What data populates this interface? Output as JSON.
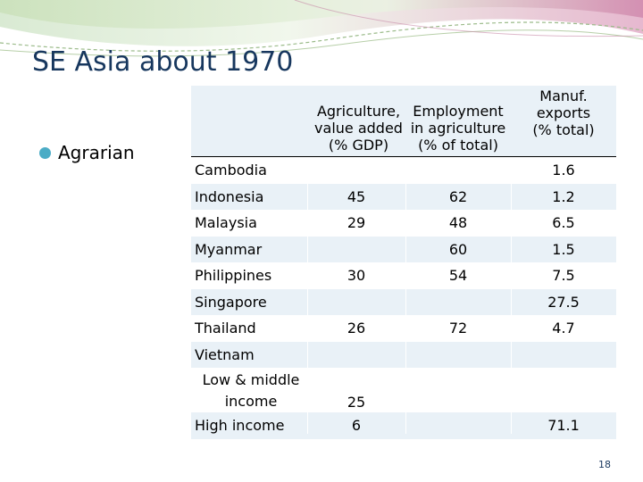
{
  "slide": {
    "title": "SE Asia about 1970",
    "bullet": "Agrarian",
    "page_number": "18",
    "colors": {
      "title": "#17375e",
      "bullet": "#4bacc6",
      "header_band": "#e9f1f7",
      "stripe": "#e9f1f7"
    }
  },
  "table": {
    "headers": {
      "agri": "Agriculture,\nvalue added\n(% GDP)",
      "emp": "Employment\nin agriculture\n(% of total)",
      "manuf": "Manuf.\nexports\n(% total)"
    },
    "rows": [
      {
        "country": "Cambodia",
        "agri": "",
        "emp": "",
        "manuf": "1.6"
      },
      {
        "country": "Indonesia",
        "agri": "45",
        "emp": "62",
        "manuf": "1.2"
      },
      {
        "country": "Malaysia",
        "agri": "29",
        "emp": "48",
        "manuf": "6.5"
      },
      {
        "country": "Myanmar",
        "agri": "",
        "emp": "60",
        "manuf": "1.5"
      },
      {
        "country": "Philippines",
        "agri": "30",
        "emp": "54",
        "manuf": "7.5"
      },
      {
        "country": "Singapore",
        "agri": "",
        "emp": "",
        "manuf": "27.5"
      },
      {
        "country": "Thailand",
        "agri": "26",
        "emp": "72",
        "manuf": "4.7"
      },
      {
        "country": "Vietnam",
        "agri": "",
        "emp": "",
        "manuf": ""
      },
      {
        "country": "Low & middle\nincome",
        "agri": "25",
        "emp": "",
        "manuf": ""
      },
      {
        "country": "High income",
        "agri": "6",
        "emp": "",
        "manuf": "71.1"
      }
    ]
  }
}
